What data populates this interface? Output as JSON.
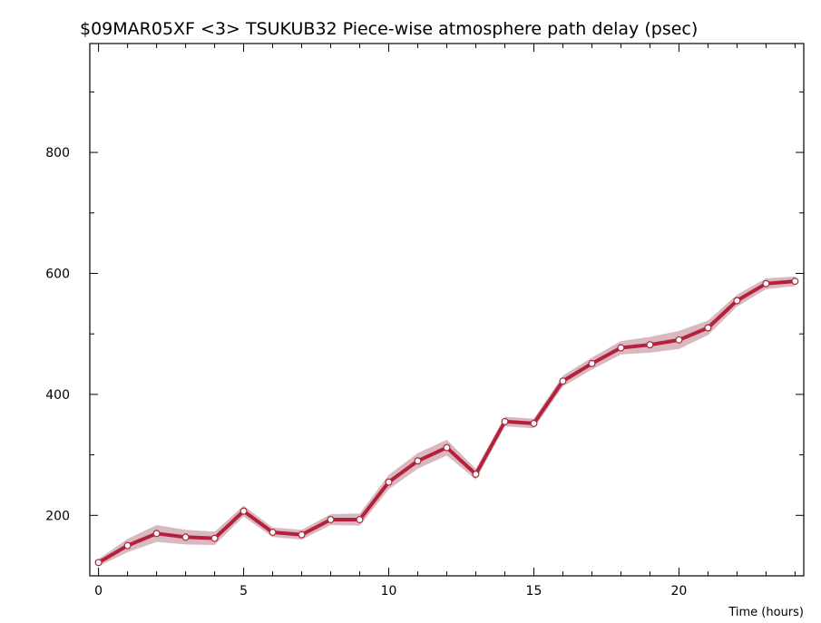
{
  "chart_data": {
    "type": "line",
    "title": "$09MAR05XF <3>  TSUKUB32  Piece-wise atmosphere path delay (psec)",
    "xlabel": "Time (hours)",
    "ylabel": "",
    "xlim": [
      -0.3,
      24.3
    ],
    "ylim": [
      100,
      980
    ],
    "x_ticks": [
      0,
      5,
      10,
      15,
      20
    ],
    "y_ticks": [
      200,
      400,
      600,
      800
    ],
    "x_minor_step": 1,
    "y_minor_step": 100,
    "grid": false,
    "legend": "none",
    "colors": {
      "line": "#b5213c",
      "band": "#d8b9bf",
      "marker_fill": "#ffffff",
      "marker_stroke": "#b5213c",
      "axis": "#000000"
    },
    "series": [
      {
        "x": [
          0,
          1,
          2,
          3,
          4,
          5,
          6,
          7,
          8,
          9,
          10,
          11,
          12,
          13,
          14,
          15,
          16,
          17,
          18,
          19,
          20,
          21,
          22,
          23,
          24
        ],
        "y": [
          122,
          150,
          170,
          164,
          162,
          207,
          172,
          168,
          193,
          193,
          255,
          290,
          312,
          268,
          355,
          352,
          422,
          451,
          477,
          482,
          490,
          510,
          555,
          583,
          587
        ],
        "band": [
          6,
          11,
          14,
          12,
          11,
          9,
          8,
          8,
          9,
          10,
          12,
          13,
          13,
          9,
          8,
          8,
          9,
          10,
          11,
          13,
          15,
          12,
          10,
          9,
          8
        ]
      }
    ]
  }
}
